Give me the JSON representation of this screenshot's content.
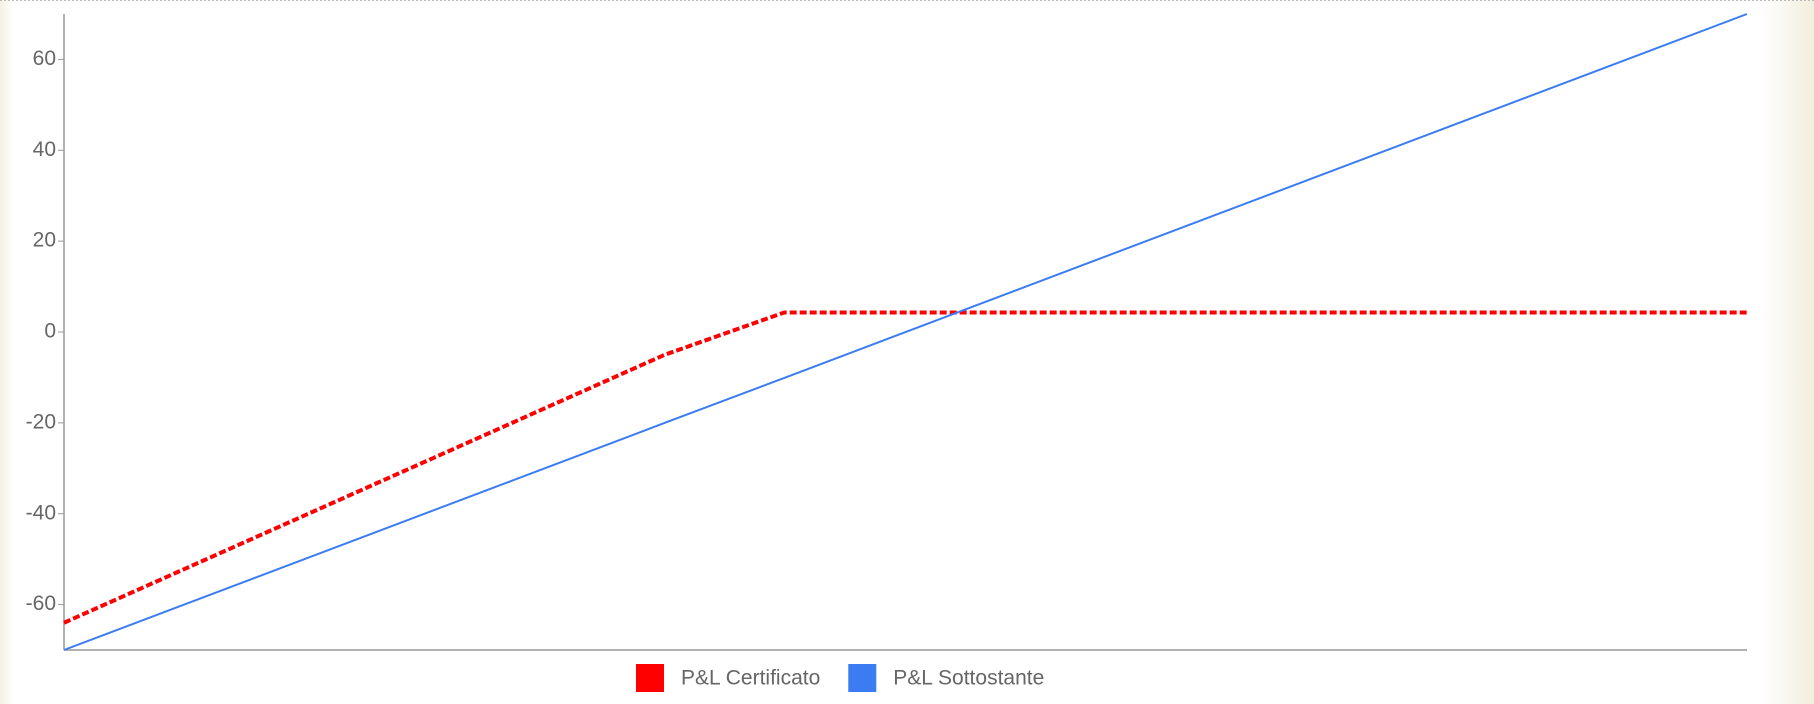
{
  "chart_data": {
    "type": "line",
    "x": [
      0,
      35.7,
      42.8,
      100
    ],
    "xlim": [
      0,
      100
    ],
    "series": [
      {
        "name": "P&L Certificato",
        "color": "#ff0000",
        "dash": true,
        "values": [
          -64,
          -5,
          4.3,
          4.3
        ]
      },
      {
        "name": "P&L Sottostante",
        "color": "#3b7cf2",
        "dash": false,
        "values": [
          -70,
          -20,
          -10.1,
          70
        ]
      }
    ],
    "ylim": [
      -70,
      70
    ],
    "yticks": [
      -60,
      -40,
      -20,
      0,
      20,
      40,
      60
    ]
  }
}
